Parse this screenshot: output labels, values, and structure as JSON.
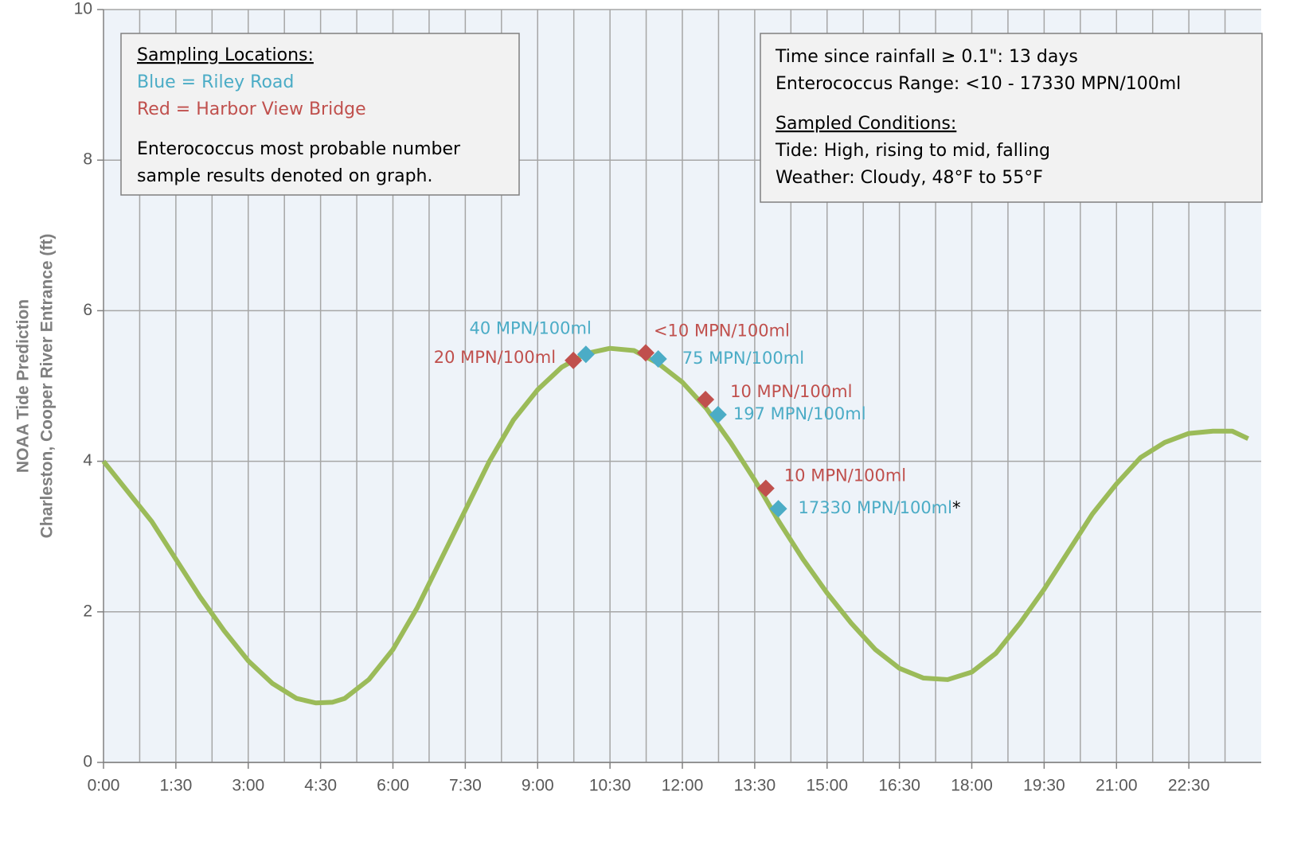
{
  "chart_data": {
    "type": "line",
    "y_label_lines": [
      "NOAA Tide Prediction",
      "Charleston, Cooper River Entrance (ft)"
    ],
    "xlim": [
      0,
      24
    ],
    "ylim": [
      0,
      10
    ],
    "yticks": [
      0,
      2,
      4,
      6,
      8,
      10
    ],
    "xticks": [
      {
        "value": 0,
        "label": "0:00"
      },
      {
        "value": 1.5,
        "label": "1:30"
      },
      {
        "value": 3,
        "label": "3:00"
      },
      {
        "value": 4.5,
        "label": "4:30"
      },
      {
        "value": 6,
        "label": "6:00"
      },
      {
        "value": 7.5,
        "label": "7:30"
      },
      {
        "value": 9,
        "label": "9:00"
      },
      {
        "value": 10.5,
        "label": "10:30"
      },
      {
        "value": 12,
        "label": "12:00"
      },
      {
        "value": 13.5,
        "label": "13:30"
      },
      {
        "value": 15,
        "label": "15:00"
      },
      {
        "value": 16.5,
        "label": "16:30"
      },
      {
        "value": 18,
        "label": "18:00"
      },
      {
        "value": 19.5,
        "label": "19:30"
      },
      {
        "value": 21,
        "label": "21:00"
      },
      {
        "value": 22.5,
        "label": "22:30"
      }
    ],
    "x_grid_step": 0.75,
    "grid": true,
    "tide": {
      "color": "#9bbb59",
      "x": [
        0,
        0.5,
        1,
        1.5,
        2,
        2.5,
        3,
        3.5,
        4,
        4.4,
        4.75,
        5,
        5.5,
        6,
        6.5,
        7,
        7.5,
        8,
        8.5,
        9,
        9.5,
        10,
        10.5,
        11,
        11.5,
        12,
        12.5,
        13,
        13.5,
        14,
        14.5,
        15,
        15.5,
        16,
        16.5,
        17,
        17.5,
        18,
        18.5,
        19,
        19.5,
        20,
        20.5,
        21,
        21.5,
        22,
        22.5,
        23,
        23.4,
        23.73
      ],
      "values": [
        4.0,
        3.6,
        3.2,
        2.7,
        2.2,
        1.75,
        1.35,
        1.05,
        0.85,
        0.79,
        0.8,
        0.85,
        1.1,
        1.5,
        2.05,
        2.7,
        3.35,
        4.0,
        4.55,
        4.95,
        5.25,
        5.43,
        5.5,
        5.47,
        5.3,
        5.05,
        4.7,
        4.25,
        3.75,
        3.2,
        2.7,
        2.25,
        1.85,
        1.5,
        1.25,
        1.12,
        1.1,
        1.2,
        1.45,
        1.85,
        2.3,
        2.8,
        3.3,
        3.7,
        4.05,
        4.25,
        4.37,
        4.4,
        4.4,
        4.3
      ]
    },
    "series": [
      {
        "color": "#4bacc6",
        "x": [
          10.0,
          11.5,
          12.74,
          13.99
        ],
        "values": [
          5.42,
          5.36,
          4.62,
          3.37
        ],
        "labels": [
          "40 MPN/100ml",
          "75 MPN/100ml",
          "197 MPN/100ml",
          "17330 MPN/100ml"
        ]
      },
      {
        "color": "#c0504d",
        "x": [
          9.74,
          11.24,
          12.48,
          13.73
        ],
        "values": [
          5.34,
          5.44,
          4.82,
          3.64
        ],
        "labels": [
          "20 MPN/100ml",
          "<10 MPN/100ml",
          "10 MPN/100ml",
          "10 MPN/100ml"
        ]
      }
    ],
    "footnote_mark": "*",
    "left_box": {
      "heading": "Sampling Locations:",
      "blue_line": "Blue = Riley Road",
      "red_line": "Red = Harbor View Bridge",
      "note_lines": [
        "Enterococcus most probable number",
        "sample results denoted on graph."
      ]
    },
    "right_box": {
      "lines": [
        "Time since rainfall ≥ 0.1\": 13 days",
        "Enterococcus Range: <10 - 17330 MPN/100ml"
      ],
      "heading": "Sampled Conditions:",
      "condition_lines": [
        "Tide: High, rising to mid, falling",
        "Weather: Cloudy, 48°F to 55°F"
      ]
    }
  }
}
